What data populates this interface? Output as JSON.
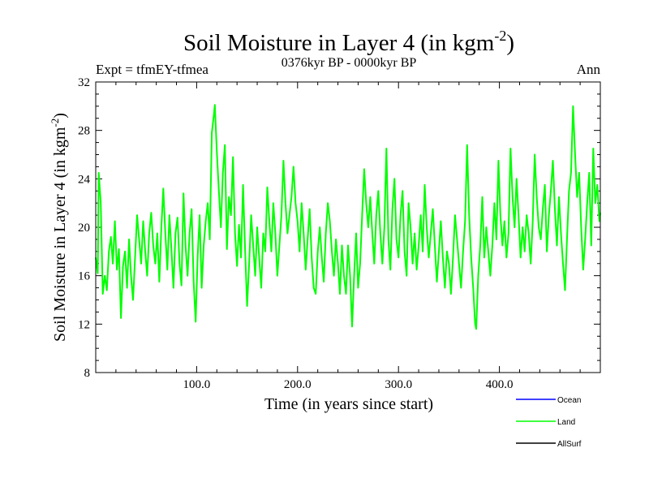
{
  "chart_data": {
    "type": "line",
    "title": "Soil Moisture in Layer 4 (in kgm",
    "title_sup": "-2",
    "title_end": ")",
    "left_label": "Expt = tfmEY-tfmea",
    "center_label": "0376kyr BP - 0000kyr BP",
    "right_label": "Ann",
    "xlabel": "Time (in years since start)",
    "ylabel": "Soil Moisture in Layer 4 (in kgm",
    "ylabel_sup": "-2",
    "ylabel_end": ")",
    "xlim": [
      0,
      500
    ],
    "ylim": [
      8,
      32
    ],
    "x_ticks": [
      100,
      200,
      300,
      400
    ],
    "x_tick_labels": [
      "100.0",
      "200.0",
      "300.0",
      "400.0"
    ],
    "y_ticks": [
      8,
      12,
      16,
      20,
      24,
      28,
      32
    ],
    "y_tick_labels": [
      "8",
      "12",
      "16",
      "20",
      "24",
      "28",
      "32"
    ],
    "legend_position": "bottom-right",
    "series": [
      {
        "name": "Ocean",
        "color": "#0000ff",
        "points": []
      },
      {
        "name": "Land",
        "color": "#00ff00",
        "points": [
          [
            0,
            17.5
          ],
          [
            2,
            16.2
          ],
          [
            3,
            24.5
          ],
          [
            5,
            22
          ],
          [
            7,
            14.5
          ],
          [
            9,
            16
          ],
          [
            11,
            14.8
          ],
          [
            13,
            18
          ],
          [
            15,
            19.2
          ],
          [
            17,
            17
          ],
          [
            19,
            20.5
          ],
          [
            21,
            16.5
          ],
          [
            23,
            18.2
          ],
          [
            25,
            12.5
          ],
          [
            27,
            16.8
          ],
          [
            29,
            18
          ],
          [
            31,
            15
          ],
          [
            33,
            19
          ],
          [
            35,
            16
          ],
          [
            37,
            14
          ],
          [
            39,
            17.5
          ],
          [
            41,
            21
          ],
          [
            43,
            19
          ],
          [
            45,
            17
          ],
          [
            47,
            20.5
          ],
          [
            49,
            18
          ],
          [
            51,
            16
          ],
          [
            53,
            19.5
          ],
          [
            55,
            21.2
          ],
          [
            57,
            18.5
          ],
          [
            59,
            17
          ],
          [
            61,
            19.5
          ],
          [
            63,
            15.5
          ],
          [
            65,
            20
          ],
          [
            67,
            23.2
          ],
          [
            69,
            19.5
          ],
          [
            71,
            16.5
          ],
          [
            73,
            21
          ],
          [
            75,
            18.2
          ],
          [
            77,
            15
          ],
          [
            79,
            19.5
          ],
          [
            81,
            20.8
          ],
          [
            83,
            17
          ],
          [
            85,
            15.2
          ],
          [
            87,
            22.8
          ],
          [
            89,
            18.5
          ],
          [
            91,
            16
          ],
          [
            93,
            19.5
          ],
          [
            95,
            21.5
          ],
          [
            97,
            15.5
          ],
          [
            99,
            12.2
          ],
          [
            101,
            17.5
          ],
          [
            103,
            21
          ],
          [
            105,
            15
          ],
          [
            107,
            18.5
          ],
          [
            109,
            20.5
          ],
          [
            111,
            22
          ],
          [
            113,
            19
          ],
          [
            115,
            27.8
          ],
          [
            117,
            29.2
          ],
          [
            118,
            30.1
          ],
          [
            120,
            26.2
          ],
          [
            122,
            23
          ],
          [
            124,
            20
          ],
          [
            126,
            24.5
          ],
          [
            128,
            26.8
          ],
          [
            130,
            18.2
          ],
          [
            132,
            22.5
          ],
          [
            134,
            21
          ],
          [
            136,
            25.8
          ],
          [
            138,
            19.5
          ],
          [
            140,
            16.8
          ],
          [
            142,
            20.2
          ],
          [
            144,
            17.5
          ],
          [
            146,
            23.5
          ],
          [
            148,
            18.2
          ],
          [
            150,
            13.5
          ],
          [
            152,
            17
          ],
          [
            154,
            21
          ],
          [
            156,
            18.5
          ],
          [
            158,
            16
          ],
          [
            160,
            20
          ],
          [
            162,
            17.5
          ],
          [
            164,
            15
          ],
          [
            166,
            19.5
          ],
          [
            168,
            18
          ],
          [
            170,
            23.3
          ],
          [
            172,
            20.5
          ],
          [
            174,
            18
          ],
          [
            176,
            22
          ],
          [
            178,
            19.5
          ],
          [
            180,
            16
          ],
          [
            182,
            18.5
          ],
          [
            184,
            21
          ],
          [
            186,
            25.5
          ],
          [
            188,
            22
          ],
          [
            190,
            19.5
          ],
          [
            192,
            21
          ],
          [
            194,
            22.5
          ],
          [
            196,
            25
          ],
          [
            198,
            22
          ],
          [
            200,
            20.5
          ],
          [
            202,
            18
          ],
          [
            204,
            22
          ],
          [
            206,
            19.5
          ],
          [
            208,
            16.5
          ],
          [
            210,
            19
          ],
          [
            212,
            21.5
          ],
          [
            214,
            17.5
          ],
          [
            216,
            15
          ],
          [
            218,
            14.5
          ],
          [
            220,
            18
          ],
          [
            222,
            20
          ],
          [
            224,
            17.5
          ],
          [
            226,
            15.5
          ],
          [
            228,
            19.5
          ],
          [
            230,
            22
          ],
          [
            232,
            20.5
          ],
          [
            234,
            18
          ],
          [
            236,
            16
          ],
          [
            238,
            19
          ],
          [
            240,
            17
          ],
          [
            242,
            14.5
          ],
          [
            244,
            18.5
          ],
          [
            246,
            16
          ],
          [
            248,
            14.5
          ],
          [
            250,
            18.5
          ],
          [
            252,
            16
          ],
          [
            254,
            11.8
          ],
          [
            256,
            16
          ],
          [
            258,
            19.5
          ],
          [
            260,
            15
          ],
          [
            262,
            17
          ],
          [
            264,
            21
          ],
          [
            266,
            24.8
          ],
          [
            268,
            22
          ],
          [
            270,
            20
          ],
          [
            272,
            22.5
          ],
          [
            274,
            19.5
          ],
          [
            276,
            17
          ],
          [
            278,
            21
          ],
          [
            280,
            23
          ],
          [
            282,
            19.5
          ],
          [
            284,
            17
          ],
          [
            286,
            20
          ],
          [
            288,
            26.5
          ],
          [
            290,
            19
          ],
          [
            292,
            16.5
          ],
          [
            294,
            21.5
          ],
          [
            296,
            24
          ],
          [
            298,
            19
          ],
          [
            300,
            17.5
          ],
          [
            302,
            21
          ],
          [
            304,
            23
          ],
          [
            306,
            18
          ],
          [
            308,
            16
          ],
          [
            310,
            22
          ],
          [
            312,
            20
          ],
          [
            314,
            17
          ],
          [
            316,
            19.5
          ],
          [
            318,
            16.5
          ],
          [
            320,
            18.5
          ],
          [
            322,
            21
          ],
          [
            324,
            18
          ],
          [
            326,
            23.5
          ],
          [
            328,
            20
          ],
          [
            330,
            17.5
          ],
          [
            332,
            19.5
          ],
          [
            334,
            21.5
          ],
          [
            336,
            18.5
          ],
          [
            338,
            15.5
          ],
          [
            340,
            18
          ],
          [
            342,
            20.5
          ],
          [
            344,
            17.5
          ],
          [
            346,
            15
          ],
          [
            348,
            18
          ],
          [
            350,
            17
          ],
          [
            352,
            14.5
          ],
          [
            354,
            17.5
          ],
          [
            356,
            21
          ],
          [
            358,
            19
          ],
          [
            360,
            17
          ],
          [
            362,
            15
          ],
          [
            364,
            18
          ],
          [
            366,
            20.5
          ],
          [
            368,
            26.8
          ],
          [
            370,
            21
          ],
          [
            372,
            17.5
          ],
          [
            374,
            15
          ],
          [
            376,
            12
          ],
          [
            377,
            11.6
          ],
          [
            379,
            16
          ],
          [
            381,
            18.5
          ],
          [
            383,
            22.5
          ],
          [
            385,
            17.5
          ],
          [
            387,
            20
          ],
          [
            389,
            18
          ],
          [
            391,
            16
          ],
          [
            393,
            18.5
          ],
          [
            395,
            22
          ],
          [
            397,
            19
          ],
          [
            399,
            25.5
          ],
          [
            401,
            21
          ],
          [
            403,
            18.5
          ],
          [
            405,
            20.5
          ],
          [
            407,
            17.5
          ],
          [
            409,
            19.5
          ],
          [
            411,
            26.5
          ],
          [
            413,
            22.5
          ],
          [
            415,
            20
          ],
          [
            417,
            24
          ],
          [
            419,
            21
          ],
          [
            421,
            17.5
          ],
          [
            423,
            20
          ],
          [
            425,
            18
          ],
          [
            427,
            21
          ],
          [
            429,
            19.5
          ],
          [
            431,
            17
          ],
          [
            433,
            20.5
          ],
          [
            435,
            26
          ],
          [
            437,
            22.5
          ],
          [
            439,
            20
          ],
          [
            441,
            19
          ],
          [
            443,
            21.5
          ],
          [
            445,
            23.5
          ],
          [
            447,
            18
          ],
          [
            449,
            21
          ],
          [
            451,
            23
          ],
          [
            453,
            25.5
          ],
          [
            455,
            21.5
          ],
          [
            457,
            18.5
          ],
          [
            459,
            22.5
          ],
          [
            461,
            19.5
          ],
          [
            463,
            17
          ],
          [
            465,
            14.8
          ],
          [
            467,
            19
          ],
          [
            469,
            23
          ],
          [
            471,
            24.5
          ],
          [
            473,
            30
          ],
          [
            475,
            26
          ],
          [
            477,
            22.5
          ],
          [
            479,
            24.5
          ],
          [
            481,
            20
          ],
          [
            483,
            16.5
          ],
          [
            485,
            19
          ],
          [
            487,
            22
          ],
          [
            489,
            24.5
          ],
          [
            491,
            18.5
          ],
          [
            493,
            26.5
          ],
          [
            495,
            22
          ],
          [
            497,
            23.5
          ],
          [
            499,
            20.5
          ],
          [
            500,
            21.2
          ]
        ]
      },
      {
        "name": "AllSurf",
        "color": "#000000",
        "points": []
      }
    ]
  }
}
